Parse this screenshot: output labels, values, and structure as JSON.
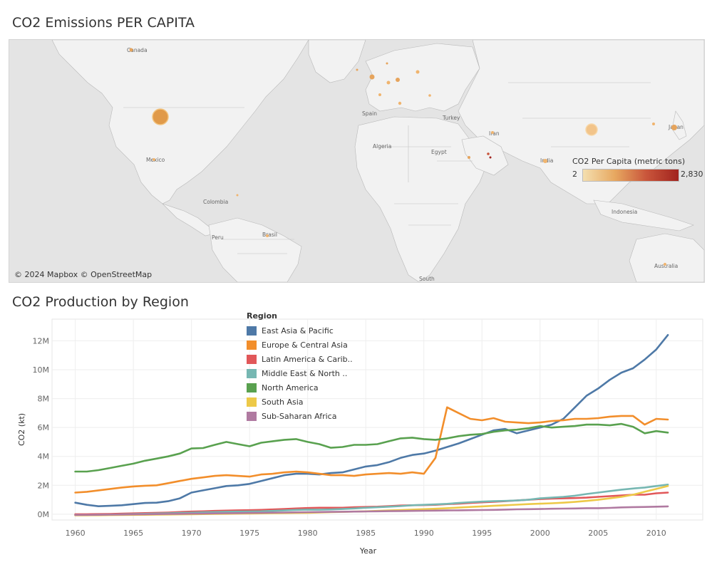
{
  "map": {
    "title": "CO2 Emissions PER CAPITA",
    "attribution": "© 2024 Mapbox © OpenStreetMap",
    "legend": {
      "title": "CO2 Per Capita (metric tons)",
      "min": "2",
      "max": "2,830"
    },
    "labels": [
      "Canada",
      "Mexico",
      "Colombia",
      "Peru",
      "Brasil",
      "Spain",
      "Algeria",
      "Egypt",
      "Turkey",
      "Iran",
      "India",
      "Japan",
      "Indonesia",
      "Australia",
      "South"
    ]
  },
  "chart_title": "CO2 Production by Region",
  "chart_data": {
    "type": "line",
    "x": [
      1960,
      1961,
      1962,
      1963,
      1964,
      1965,
      1966,
      1967,
      1968,
      1969,
      1970,
      1971,
      1972,
      1973,
      1974,
      1975,
      1976,
      1977,
      1978,
      1979,
      1980,
      1981,
      1982,
      1983,
      1984,
      1985,
      1986,
      1987,
      1988,
      1989,
      1990,
      1991,
      1992,
      1993,
      1994,
      1995,
      1996,
      1997,
      1998,
      1999,
      2000,
      2001,
      2002,
      2003,
      2004,
      2005,
      2006,
      2007,
      2008,
      2009,
      2010,
      2011
    ],
    "xlabel": "Year",
    "ylabel": "CO2 (kt)",
    "xlim": [
      1958,
      2014
    ],
    "ylim": [
      -400000,
      13500000
    ],
    "xticks": [
      1960,
      1965,
      1970,
      1975,
      1980,
      1985,
      1990,
      1995,
      2000,
      2005,
      2010
    ],
    "yticks": [
      0,
      2000000,
      4000000,
      6000000,
      8000000,
      10000000,
      12000000
    ],
    "ytick_labels": [
      "0M",
      "2M",
      "4M",
      "6M",
      "8M",
      "10M",
      "12M"
    ],
    "legend_title": "Region",
    "legend_position": "top",
    "grid": true,
    "series": [
      {
        "name": "East Asia & Pacific",
        "color": "#4e79a7",
        "values": [
          800000,
          650000,
          550000,
          580000,
          620000,
          700000,
          780000,
          800000,
          900000,
          1100000,
          1500000,
          1650000,
          1800000,
          1950000,
          2000000,
          2100000,
          2300000,
          2500000,
          2700000,
          2800000,
          2800000,
          2750000,
          2850000,
          2900000,
          3100000,
          3300000,
          3400000,
          3600000,
          3900000,
          4100000,
          4200000,
          4400000,
          4650000,
          4900000,
          5200000,
          5500000,
          5800000,
          5900000,
          5600000,
          5800000,
          6000000,
          6200000,
          6600000,
          7400000,
          8200000,
          8700000,
          9300000,
          9800000,
          10100000,
          10700000,
          11400000,
          12400000
        ]
      },
      {
        "name": "Europe & Central Asia",
        "color": "#f28e2b",
        "values": [
          1500000,
          1550000,
          1650000,
          1750000,
          1850000,
          1920000,
          1970000,
          2000000,
          2150000,
          2300000,
          2450000,
          2550000,
          2650000,
          2700000,
          2650000,
          2600000,
          2750000,
          2800000,
          2900000,
          2950000,
          2900000,
          2800000,
          2700000,
          2700000,
          2650000,
          2750000,
          2800000,
          2850000,
          2800000,
          2900000,
          2800000,
          3900000,
          7400000,
          7000000,
          6600000,
          6500000,
          6650000,
          6400000,
          6350000,
          6300000,
          6350000,
          6450000,
          6500000,
          6600000,
          6600000,
          6650000,
          6750000,
          6800000,
          6800000,
          6200000,
          6600000,
          6550000
        ]
      },
      {
        "name": "Latin America & Caribbean",
        "color": "#e15759",
        "values": [
          0,
          0,
          10000,
          20000,
          40000,
          60000,
          80000,
          100000,
          120000,
          150000,
          180000,
          200000,
          230000,
          250000,
          270000,
          280000,
          300000,
          330000,
          360000,
          400000,
          430000,
          450000,
          450000,
          450000,
          480000,
          500000,
          520000,
          560000,
          600000,
          620000,
          630000,
          650000,
          700000,
          730000,
          780000,
          820000,
          860000,
          900000,
          950000,
          1000000,
          1050000,
          1080000,
          1100000,
          1120000,
          1150000,
          1200000,
          1250000,
          1300000,
          1350000,
          1350000,
          1450000,
          1500000
        ]
      },
      {
        "name": "Middle East & North Africa",
        "color": "#76b7b2",
        "values": [
          -60000,
          -50000,
          -40000,
          -30000,
          -10000,
          10000,
          30000,
          50000,
          70000,
          90000,
          110000,
          130000,
          150000,
          170000,
          180000,
          190000,
          200000,
          230000,
          260000,
          300000,
          320000,
          310000,
          330000,
          360000,
          400000,
          450000,
          480000,
          520000,
          560000,
          620000,
          650000,
          680000,
          720000,
          780000,
          830000,
          870000,
          900000,
          920000,
          950000,
          1000000,
          1100000,
          1150000,
          1200000,
          1280000,
          1400000,
          1500000,
          1600000,
          1700000,
          1780000,
          1850000,
          1950000,
          2050000
        ]
      },
      {
        "name": "North America",
        "color": "#59a14f",
        "values": [
          2950000,
          2950000,
          3050000,
          3200000,
          3350000,
          3500000,
          3700000,
          3850000,
          4000000,
          4200000,
          4550000,
          4580000,
          4800000,
          5000000,
          4850000,
          4700000,
          4950000,
          5050000,
          5150000,
          5200000,
          5000000,
          4850000,
          4600000,
          4650000,
          4800000,
          4800000,
          4850000,
          5050000,
          5250000,
          5300000,
          5200000,
          5150000,
          5250000,
          5400000,
          5500000,
          5550000,
          5700000,
          5800000,
          5850000,
          5950000,
          6100000,
          6000000,
          6050000,
          6100000,
          6200000,
          6200000,
          6150000,
          6250000,
          6050000,
          5600000,
          5750000,
          5650000
        ]
      },
      {
        "name": "South Asia",
        "color": "#edc948",
        "values": [
          -80000,
          -75000,
          -70000,
          -60000,
          -50000,
          -45000,
          -40000,
          -30000,
          -20000,
          -10000,
          0,
          10000,
          20000,
          30000,
          40000,
          50000,
          60000,
          70000,
          80000,
          90000,
          100000,
          120000,
          140000,
          160000,
          180000,
          200000,
          230000,
          260000,
          290000,
          320000,
          350000,
          380000,
          420000,
          460000,
          500000,
          540000,
          580000,
          620000,
          660000,
          700000,
          730000,
          760000,
          800000,
          850000,
          920000,
          1000000,
          1100000,
          1200000,
          1350000,
          1550000,
          1750000,
          1950000
        ]
      },
      {
        "name": "Sub-Saharan Africa",
        "color": "#b07aa1",
        "values": [
          -50000,
          -45000,
          -40000,
          -30000,
          -20000,
          -10000,
          0,
          10000,
          20000,
          30000,
          40000,
          50000,
          60000,
          70000,
          80000,
          90000,
          100000,
          110000,
          120000,
          130000,
          140000,
          150000,
          160000,
          170000,
          180000,
          190000,
          200000,
          210000,
          220000,
          230000,
          240000,
          250000,
          260000,
          270000,
          280000,
          290000,
          300000,
          320000,
          340000,
          350000,
          360000,
          380000,
          390000,
          400000,
          420000,
          420000,
          440000,
          470000,
          490000,
          500000,
          520000,
          540000
        ]
      }
    ]
  },
  "region_legend": {
    "title": "Region",
    "items": [
      {
        "label": "East Asia & Pacific",
        "color": "#4e79a7"
      },
      {
        "label": "Europe & Central Asia",
        "color": "#f28e2b"
      },
      {
        "label": "Latin America & Carib..",
        "color": "#e15759"
      },
      {
        "label": "Middle East & North ..",
        "color": "#76b7b2"
      },
      {
        "label": "North America",
        "color": "#59a14f"
      },
      {
        "label": "South Asia",
        "color": "#edc948"
      },
      {
        "label": "Sub-Saharan Africa",
        "color": "#b07aa1"
      }
    ]
  }
}
